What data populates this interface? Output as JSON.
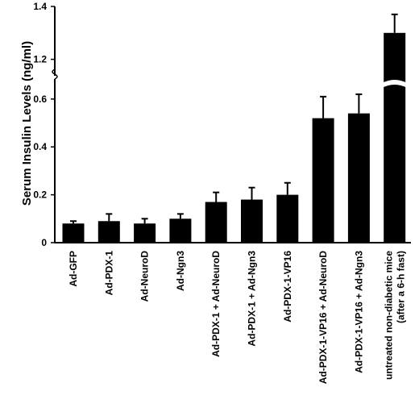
{
  "chart_data": {
    "type": "bar",
    "title": "",
    "xlabel": "",
    "ylabel": "Serum Insulin Levels (ng/ml)",
    "axis_break": {
      "lower_range": [
        0,
        0.65
      ],
      "upper_range": [
        1.15,
        1.4
      ]
    },
    "yticks_lower": [
      "0",
      "0.2",
      "0.4",
      "0.6"
    ],
    "yticks_upper": [
      "1.2",
      "1.4"
    ],
    "categories": [
      "Ad-GFP",
      "Ad-PDX-1",
      "Ad-NeuroD",
      "Ad-Ngn3",
      "Ad-PDX-1 + Ad-NeuroD",
      "Ad-PDX-1 + Ad-Ngn3",
      "Ad-PDX-1-VP16",
      "Ad-PDX-1-VP16 + Ad-NeuroD",
      "Ad-PDX-1-VP16 + Ad-Ngn3",
      [
        "untreated non-diabetic mice",
        "(after a 6-h fast)"
      ]
    ],
    "values": [
      0.08,
      0.09,
      0.08,
      0.1,
      0.17,
      0.18,
      0.2,
      0.52,
      0.54,
      1.3
    ],
    "errors": [
      0.01,
      0.03,
      0.02,
      0.02,
      0.04,
      0.05,
      0.05,
      0.09,
      0.08,
      0.07
    ],
    "bar_color": "#000000",
    "grid": false
  }
}
